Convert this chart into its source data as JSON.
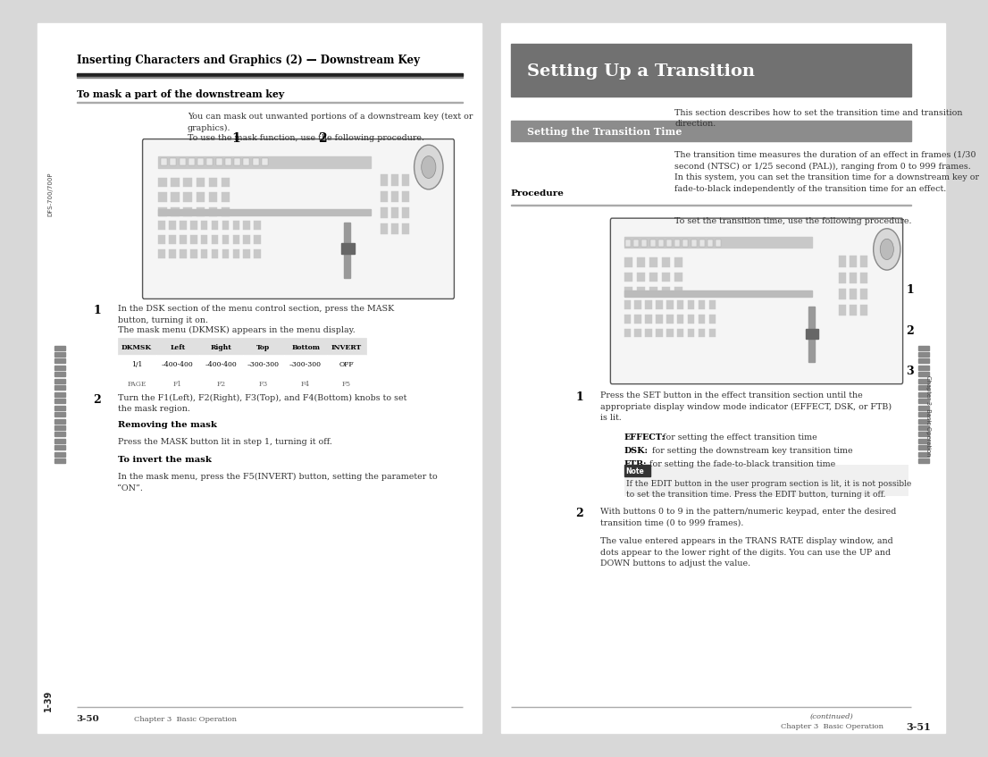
{
  "bg_color": "#d8d8d8",
  "page_bg": "#ffffff",
  "left_page": {
    "sidebar_text": "DFS-700/700P",
    "sidebar_bottom": "1-39",
    "section_title": "Inserting Characters and Graphics (2) — Downstream Key",
    "subsection_title": "To mask a part of the downstream key",
    "body_text1": "You can mask out unwanted portions of a downstream key (text or\ngraphics).",
    "body_text2": "To use the mask function, use the following procedure.",
    "num1": "1",
    "num2": "2",
    "step1_text": "In the DSK section of the menu control section, press the MASK\nbutton, turning it on.",
    "table_caption": "The mask menu (DKMSK) appears in the menu display.",
    "table_headers": [
      "DKMSK",
      "Left",
      "Right",
      "Top",
      "Bottom",
      "INVERT"
    ],
    "table_row1": [
      "1/1",
      "–400-400",
      "–400-400",
      "–300-300",
      "–300-300",
      "OFF"
    ],
    "table_row2": [
      "PAGE",
      "F1",
      "F2",
      "F3",
      "F4",
      "F5"
    ],
    "step2_text": "Turn the F1(Left), F2(Right), F3(Top), and F4(Bottom) knobs to set\nthe mask region.",
    "removing_title": "Removing the mask",
    "removing_text": "Press the MASK button lit in step 1, turning it off.",
    "invert_title": "To invert the mask",
    "invert_text": "In the mask menu, press the F5(INVERT) button, setting the parameter to\n“ON”.",
    "page_num": "3-50",
    "chapter_text": "Chapter 3  Basic Operation"
  },
  "right_page": {
    "chapter_spine": "Chapter 3  Basic Operation",
    "header_title": "Setting Up a Transition",
    "header_bg": "#717171",
    "intro_text": "This section describes how to set the transition time and transition\ndirection.",
    "subsection_title": "Setting the Transition Time",
    "subsection_bg": "#8c8c8c",
    "body_text1": "The transition time measures the duration of an effect in frames (1/30\nsecond (NTSC) or 1/25 second (PAL)), ranging from 0 to 999 frames.\nIn this system, you can set the transition time for a downstream key or\nfade-to-black independently of the transition time for an effect.",
    "procedure_title": "Procedure",
    "procedure_caption": "To set the transition time, use the following procedure.",
    "num1": "1",
    "num2": "2",
    "num3": "3",
    "step1_text": "Press the SET button in the effect transition section until the\nappropriate display window mode indicator (EFFECT, DSK, or FTB)\nis lit.",
    "effect_label": "EFFECT:",
    "effect_rest": " for setting the effect transition time",
    "dsk_label": "DSK:",
    "dsk_rest": " for setting the downstream key transition time",
    "ftb_label": "FTB:",
    "ftb_rest": " for setting the fade-to-black transition time",
    "note_label": "Note",
    "note_text": "If the EDIT button in the user program section is lit, it is not possible\nto set the transition time. Press the EDIT button, turning it off.",
    "step2_text": "With buttons 0 to 9 in the pattern/numeric keypad, enter the desired\ntransition time (0 to 999 frames).",
    "body_text2": "The value entered appears in the TRANS RATE display window, and\ndots appear to the lower right of the digits. You can use the UP and\nDOWN buttons to adjust the value.",
    "continued": "(continued)",
    "chapter_text": "Chapter 3  Basic Operation",
    "page_num": "3-51"
  }
}
